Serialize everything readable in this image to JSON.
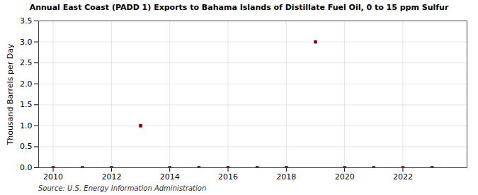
{
  "chart_data": {
    "type": "scatter",
    "title": "Annual East Coast (PADD 1) Exports to Bahama Islands of Distillate Fuel Oil, 0 to 15 ppm Sulfur",
    "ylabel": "Thousand Barrels per Day",
    "source": "Source: U.S. Energy Information Administration",
    "x": [
      2010,
      2011,
      2012,
      2013,
      2014,
      2015,
      2016,
      2017,
      2018,
      2019,
      2020,
      2021,
      2022,
      2023
    ],
    "values": [
      0.0,
      0.0,
      0.0,
      1.0,
      0.0,
      0.0,
      0.0,
      0.0,
      0.0,
      3.0,
      0.0,
      0.0,
      0.0,
      0.0
    ],
    "color": "#8b0000",
    "marker": "square",
    "xlim": [
      2009.5,
      2024.2
    ],
    "ylim": [
      0.0,
      3.5
    ],
    "xticks": [
      2010,
      2012,
      2014,
      2016,
      2018,
      2020,
      2022
    ],
    "yticks": [
      {
        "value": 0.0,
        "label": "0.0"
      },
      0.5,
      {
        "value": 1.0,
        "label": "1.0"
      },
      1.5,
      {
        "value": 2.0,
        "label": "2.0"
      },
      2.5,
      {
        "value": 3.0,
        "label": "3.0"
      },
      3.5
    ],
    "grid": true
  }
}
